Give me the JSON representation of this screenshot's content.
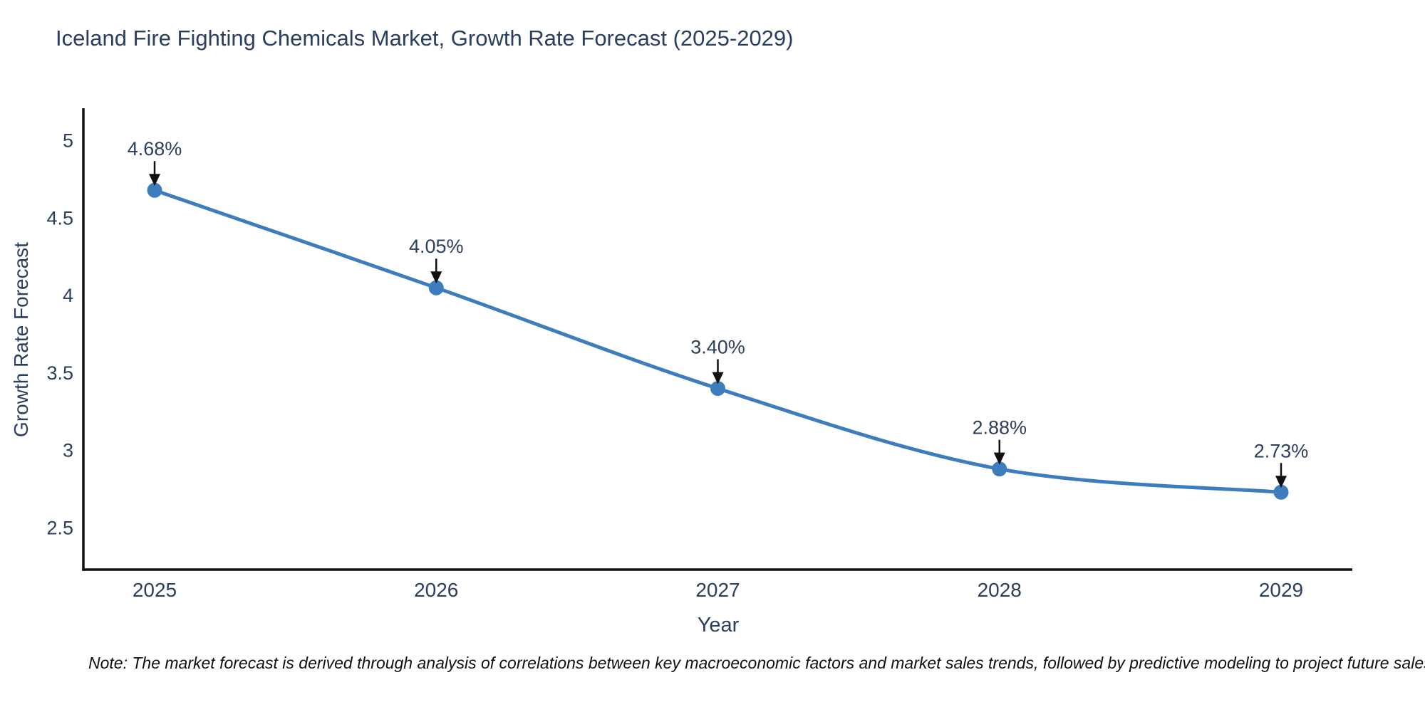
{
  "header": {
    "title": "Iceland Fire Fighting Chemicals Market, Growth Rate Forecast (2025-2029)"
  },
  "chart_data": {
    "type": "line",
    "title": "Iceland Fire Fighting Chemicals Market, Growth Rate Forecast (2025-2029)",
    "categories": [
      "2025",
      "2026",
      "2027",
      "2028",
      "2029"
    ],
    "x": [
      2025,
      2026,
      2027,
      2028,
      2029
    ],
    "values": [
      4.68,
      4.05,
      3.4,
      2.88,
      2.73
    ],
    "point_labels": [
      "4.68%",
      "4.05%",
      "3.40%",
      "2.88%",
      "2.73%"
    ],
    "xlabel": "Year",
    "ylabel": "Growth Rate Forecast",
    "yticks": [
      5,
      4.5,
      4,
      3.5,
      3,
      2.5
    ],
    "ytick_labels": [
      "5",
      "4.5",
      "4",
      "3.5",
      "3",
      "2.5"
    ],
    "ylim": [
      2.23,
      5.21
    ],
    "grid": false,
    "legend_position": "none",
    "line_color": "#3e7dbd",
    "marker_color": "#3e7dbd",
    "axis_color": "#111111",
    "text_color": "#2a3f5f",
    "arrow_color": "#111111"
  },
  "note": {
    "text": "Note: The market forecast is derived through analysis of correlations between key macroeconomic factors and market sales trends, followed by predictive modeling to project future sales"
  }
}
